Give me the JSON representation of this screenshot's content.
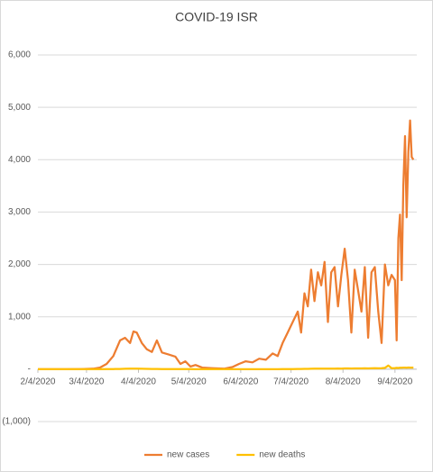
{
  "chart_data": {
    "type": "line",
    "title": "COVID-19 ISR",
    "x": [
      "2/4/2020",
      "2/20/2020",
      "3/1/2020",
      "3/8/2020",
      "3/12/2020",
      "3/16/2020",
      "3/20/2020",
      "3/24/2020",
      "3/27/2020",
      "3/30/2020",
      "4/1/2020",
      "4/3/2020",
      "4/6/2020",
      "4/9/2020",
      "4/12/2020",
      "4/15/2020",
      "4/18/2020",
      "4/22/2020",
      "4/26/2020",
      "4/29/2020",
      "5/2/2020",
      "5/5/2020",
      "5/8/2020",
      "5/12/2020",
      "5/18/2020",
      "5/25/2020",
      "5/30/2020",
      "6/3/2020",
      "6/7/2020",
      "6/11/2020",
      "6/15/2020",
      "6/19/2020",
      "6/23/2020",
      "6/26/2020",
      "6/29/2020",
      "7/2/2020",
      "7/5/2020",
      "7/8/2020",
      "7/10/2020",
      "7/12/2020",
      "7/14/2020",
      "7/16/2020",
      "7/18/2020",
      "7/20/2020",
      "7/22/2020",
      "7/24/2020",
      "7/26/2020",
      "7/28/2020",
      "7/30/2020",
      "8/1/2020",
      "8/3/2020",
      "8/5/2020",
      "8/7/2020",
      "8/9/2020",
      "8/11/2020",
      "8/13/2020",
      "8/15/2020",
      "8/17/2020",
      "8/19/2020",
      "8/21/2020",
      "8/23/2020",
      "8/25/2020",
      "8/27/2020",
      "8/29/2020",
      "8/31/2020",
      "9/2/2020",
      "9/4/2020",
      "9/5/2020",
      "9/6/2020",
      "9/7/2020",
      "9/8/2020",
      "9/9/2020",
      "9/10/2020",
      "9/11/2020",
      "9/12/2020",
      "9/13/2020",
      "9/14/2020",
      "9/15/2020"
    ],
    "series": [
      {
        "name": "new cases",
        "color": "#ED7D31",
        "values": [
          0,
          0,
          2,
          10,
          30,
          100,
          250,
          550,
          600,
          500,
          720,
          700,
          500,
          380,
          330,
          550,
          320,
          280,
          240,
          100,
          150,
          50,
          80,
          30,
          20,
          10,
          40,
          100,
          150,
          130,
          200,
          180,
          300,
          250,
          500,
          700,
          900,
          1100,
          700,
          1450,
          1200,
          1900,
          1300,
          1850,
          1600,
          2050,
          900,
          1850,
          1950,
          1200,
          1800,
          2300,
          1700,
          700,
          1900,
          1500,
          1100,
          1950,
          600,
          1850,
          1950,
          1100,
          500,
          2000,
          1600,
          1800,
          1700,
          550,
          2500,
          2950,
          1700,
          3500,
          4450,
          2900,
          4150,
          4750,
          4050,
          4000
        ]
      },
      {
        "name": "new deaths",
        "color": "#FFC000",
        "values": [
          0,
          0,
          0,
          0,
          0,
          1,
          2,
          5,
          8,
          10,
          12,
          10,
          8,
          6,
          5,
          4,
          3,
          2,
          2,
          1,
          1,
          1,
          0,
          0,
          0,
          0,
          0,
          0,
          0,
          0,
          0,
          0,
          0,
          0,
          1,
          2,
          3,
          4,
          5,
          6,
          7,
          8,
          9,
          10,
          10,
          12,
          11,
          12,
          12,
          13,
          12,
          15,
          14,
          13,
          14,
          15,
          14,
          16,
          15,
          17,
          18,
          16,
          20,
          25,
          70,
          20,
          22,
          25,
          24,
          26,
          28,
          30,
          30,
          28,
          32,
          30,
          30,
          30
        ]
      }
    ],
    "xlim": [
      "2/4/2020",
      "9/17/2020"
    ],
    "xticks": [
      "2/4/2020",
      "3/4/2020",
      "4/4/2020",
      "5/4/2020",
      "6/4/2020",
      "7/4/2020",
      "8/4/2020",
      "9/4/2020"
    ],
    "ylim": [
      -1000,
      6000
    ],
    "yticks": [
      {
        "value": -1000,
        "label": "(1,000)"
      },
      {
        "value": 0,
        "label": "-"
      },
      {
        "value": 1000,
        "label": "1,000"
      },
      {
        "value": 2000,
        "label": "2,000"
      },
      {
        "value": 3000,
        "label": "3,000"
      },
      {
        "value": 4000,
        "label": "4,000"
      },
      {
        "value": 5000,
        "label": "5,000"
      },
      {
        "value": 6000,
        "label": "6,000"
      }
    ],
    "grid": true,
    "legend": "bottom"
  }
}
